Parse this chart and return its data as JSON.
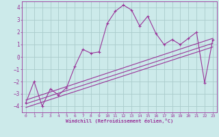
{
  "background_color": "#cceaea",
  "grid_color": "#aacccc",
  "line_color": "#993399",
  "xlabel": "Windchill (Refroidissement éolien,°C)",
  "xlim": [
    -0.5,
    23.5
  ],
  "ylim": [
    -4.5,
    4.5
  ],
  "yticks": [
    -4,
    -3,
    -2,
    -1,
    0,
    1,
    2,
    3,
    4
  ],
  "xticks": [
    0,
    1,
    2,
    3,
    4,
    5,
    6,
    7,
    8,
    9,
    10,
    11,
    12,
    13,
    14,
    15,
    16,
    17,
    18,
    19,
    20,
    21,
    22,
    23
  ],
  "series1_x": [
    0,
    1,
    2,
    3,
    4,
    5,
    6,
    7,
    8,
    9,
    10,
    11,
    12,
    13,
    14,
    15,
    16,
    17,
    18,
    19,
    20,
    21,
    22,
    23
  ],
  "series1_y": [
    -3.7,
    -2.0,
    -4.0,
    -2.6,
    -3.1,
    -2.5,
    -0.8,
    0.6,
    0.3,
    0.4,
    2.7,
    3.7,
    4.2,
    3.8,
    2.5,
    3.3,
    1.9,
    1.0,
    1.4,
    1.0,
    1.5,
    2.0,
    -2.1,
    1.4
  ],
  "line1_x": [
    0,
    23
  ],
  "line1_y": [
    -3.5,
    1.5
  ],
  "line2_x": [
    0,
    23
  ],
  "line2_y": [
    -3.8,
    1.1
  ],
  "line3_x": [
    0,
    23
  ],
  "line3_y": [
    -4.1,
    0.8
  ]
}
